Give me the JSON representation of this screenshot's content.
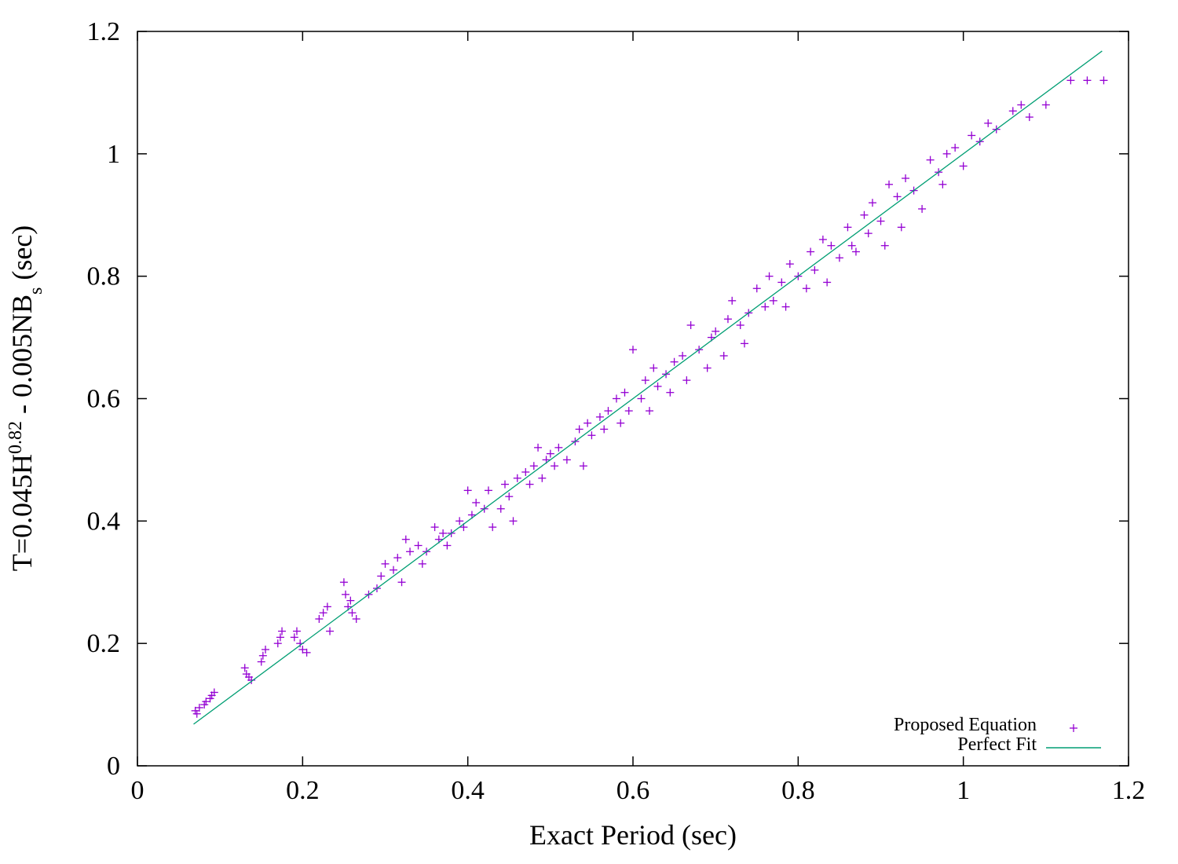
{
  "chart_data": {
    "type": "scatter",
    "title": "",
    "xlabel": "Exact Period (sec)",
    "ylabel": {
      "parts": [
        {
          "text": "T=0.045H",
          "kind": "normal"
        },
        {
          "text": "0.82",
          "kind": "sup"
        },
        {
          "text": " - 0.005NB",
          "kind": "normal"
        },
        {
          "text": "s",
          "kind": "sub"
        },
        {
          "text": " (sec)",
          "kind": "normal"
        }
      ]
    },
    "xlim": [
      0,
      1.2
    ],
    "ylim": [
      0,
      1.2
    ],
    "xticks": [
      0,
      0.2,
      0.4,
      0.6,
      0.8,
      1,
      1.2
    ],
    "xtick_labels": [
      "0",
      "0.2",
      "0.4",
      "0.6",
      "0.8",
      "1",
      "1.2"
    ],
    "yticks": [
      0,
      0.2,
      0.4,
      0.6,
      0.8,
      1,
      1.2
    ],
    "ytick_labels": [
      "0",
      "0.2",
      "0.4",
      "0.6",
      "0.8",
      "1",
      "1.2"
    ],
    "grid": false,
    "legend_position": "bottom-right",
    "series": [
      {
        "name": "Proposed Equation",
        "kind": "points",
        "marker": "+",
        "color": "#9400D3",
        "points": [
          [
            0.07,
            0.09
          ],
          [
            0.072,
            0.085
          ],
          [
            0.075,
            0.095
          ],
          [
            0.081,
            0.1
          ],
          [
            0.083,
            0.105
          ],
          [
            0.088,
            0.11
          ],
          [
            0.09,
            0.115
          ],
          [
            0.093,
            0.12
          ],
          [
            0.13,
            0.16
          ],
          [
            0.132,
            0.15
          ],
          [
            0.135,
            0.145
          ],
          [
            0.138,
            0.14
          ],
          [
            0.15,
            0.17
          ],
          [
            0.152,
            0.18
          ],
          [
            0.155,
            0.19
          ],
          [
            0.17,
            0.2
          ],
          [
            0.173,
            0.21
          ],
          [
            0.175,
            0.22
          ],
          [
            0.19,
            0.21
          ],
          [
            0.193,
            0.22
          ],
          [
            0.197,
            0.2
          ],
          [
            0.2,
            0.19
          ],
          [
            0.205,
            0.185
          ],
          [
            0.22,
            0.24
          ],
          [
            0.225,
            0.25
          ],
          [
            0.23,
            0.26
          ],
          [
            0.233,
            0.22
          ],
          [
            0.25,
            0.3
          ],
          [
            0.252,
            0.28
          ],
          [
            0.255,
            0.26
          ],
          [
            0.258,
            0.27
          ],
          [
            0.26,
            0.25
          ],
          [
            0.265,
            0.24
          ],
          [
            0.28,
            0.28
          ],
          [
            0.29,
            0.29
          ],
          [
            0.295,
            0.31
          ],
          [
            0.3,
            0.33
          ],
          [
            0.31,
            0.32
          ],
          [
            0.315,
            0.34
          ],
          [
            0.32,
            0.3
          ],
          [
            0.325,
            0.37
          ],
          [
            0.33,
            0.35
          ],
          [
            0.34,
            0.36
          ],
          [
            0.345,
            0.33
          ],
          [
            0.35,
            0.35
          ],
          [
            0.36,
            0.39
          ],
          [
            0.365,
            0.37
          ],
          [
            0.37,
            0.38
          ],
          [
            0.375,
            0.36
          ],
          [
            0.38,
            0.38
          ],
          [
            0.39,
            0.4
          ],
          [
            0.395,
            0.39
          ],
          [
            0.4,
            0.45
          ],
          [
            0.405,
            0.41
          ],
          [
            0.41,
            0.43
          ],
          [
            0.42,
            0.42
          ],
          [
            0.425,
            0.45
          ],
          [
            0.43,
            0.39
          ],
          [
            0.44,
            0.42
          ],
          [
            0.445,
            0.46
          ],
          [
            0.45,
            0.44
          ],
          [
            0.455,
            0.4
          ],
          [
            0.46,
            0.47
          ],
          [
            0.47,
            0.48
          ],
          [
            0.475,
            0.46
          ],
          [
            0.48,
            0.49
          ],
          [
            0.485,
            0.52
          ],
          [
            0.49,
            0.47
          ],
          [
            0.495,
            0.5
          ],
          [
            0.5,
            0.51
          ],
          [
            0.505,
            0.49
          ],
          [
            0.51,
            0.52
          ],
          [
            0.52,
            0.5
          ],
          [
            0.53,
            0.53
          ],
          [
            0.535,
            0.55
          ],
          [
            0.54,
            0.49
          ],
          [
            0.545,
            0.56
          ],
          [
            0.55,
            0.54
          ],
          [
            0.56,
            0.57
          ],
          [
            0.565,
            0.55
          ],
          [
            0.57,
            0.58
          ],
          [
            0.58,
            0.6
          ],
          [
            0.585,
            0.56
          ],
          [
            0.59,
            0.61
          ],
          [
            0.595,
            0.58
          ],
          [
            0.6,
            0.68
          ],
          [
            0.61,
            0.6
          ],
          [
            0.615,
            0.63
          ],
          [
            0.62,
            0.58
          ],
          [
            0.625,
            0.65
          ],
          [
            0.63,
            0.62
          ],
          [
            0.64,
            0.64
          ],
          [
            0.645,
            0.61
          ],
          [
            0.65,
            0.66
          ],
          [
            0.66,
            0.67
          ],
          [
            0.665,
            0.63
          ],
          [
            0.67,
            0.72
          ],
          [
            0.68,
            0.68
          ],
          [
            0.69,
            0.65
          ],
          [
            0.695,
            0.7
          ],
          [
            0.7,
            0.71
          ],
          [
            0.71,
            0.67
          ],
          [
            0.715,
            0.73
          ],
          [
            0.72,
            0.76
          ],
          [
            0.73,
            0.72
          ],
          [
            0.735,
            0.69
          ],
          [
            0.74,
            0.74
          ],
          [
            0.75,
            0.78
          ],
          [
            0.76,
            0.75
          ],
          [
            0.765,
            0.8
          ],
          [
            0.77,
            0.76
          ],
          [
            0.78,
            0.79
          ],
          [
            0.785,
            0.75
          ],
          [
            0.79,
            0.82
          ],
          [
            0.8,
            0.8
          ],
          [
            0.81,
            0.78
          ],
          [
            0.815,
            0.84
          ],
          [
            0.82,
            0.81
          ],
          [
            0.83,
            0.86
          ],
          [
            0.835,
            0.79
          ],
          [
            0.84,
            0.85
          ],
          [
            0.85,
            0.83
          ],
          [
            0.86,
            0.88
          ],
          [
            0.865,
            0.85
          ],
          [
            0.87,
            0.84
          ],
          [
            0.88,
            0.9
          ],
          [
            0.885,
            0.87
          ],
          [
            0.89,
            0.92
          ],
          [
            0.9,
            0.89
          ],
          [
            0.905,
            0.85
          ],
          [
            0.91,
            0.95
          ],
          [
            0.92,
            0.93
          ],
          [
            0.925,
            0.88
          ],
          [
            0.93,
            0.96
          ],
          [
            0.94,
            0.94
          ],
          [
            0.95,
            0.91
          ],
          [
            0.96,
            0.99
          ],
          [
            0.97,
            0.97
          ],
          [
            0.975,
            0.95
          ],
          [
            0.98,
            1.0
          ],
          [
            0.99,
            1.01
          ],
          [
            1.0,
            0.98
          ],
          [
            1.01,
            1.03
          ],
          [
            1.02,
            1.02
          ],
          [
            1.03,
            1.05
          ],
          [
            1.04,
            1.04
          ],
          [
            1.06,
            1.07
          ],
          [
            1.07,
            1.08
          ],
          [
            1.08,
            1.06
          ],
          [
            1.1,
            1.08
          ],
          [
            1.13,
            1.12
          ],
          [
            1.15,
            1.12
          ],
          [
            1.17,
            1.12
          ]
        ]
      },
      {
        "name": "Perfect Fit",
        "kind": "line",
        "color": "#009E73",
        "points": [
          [
            0.068,
            0.068
          ],
          [
            1.168,
            1.168
          ]
        ]
      }
    ]
  }
}
